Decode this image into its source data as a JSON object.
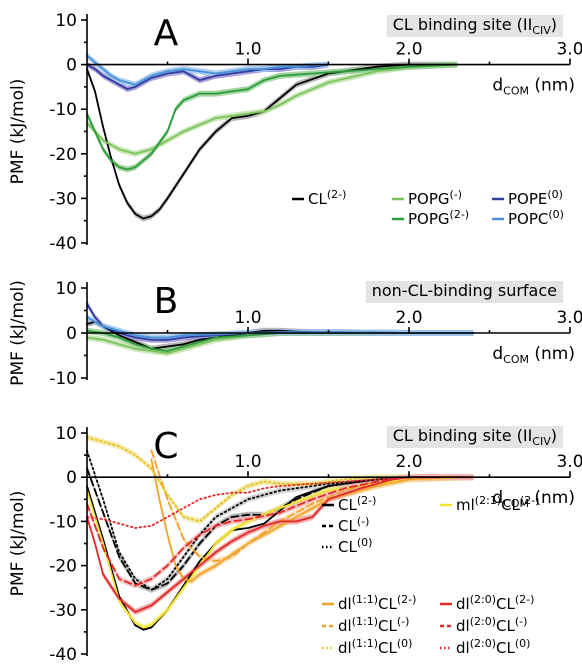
{
  "chart_data": [
    {
      "panel": "A",
      "type": "line",
      "title": "CL binding site (II",
      "title_sub": "CIV",
      "title_end": ")",
      "xlabel": "d",
      "xlabel_sub": "COM",
      "xlabel_end": " (nm)",
      "ylabel": "PMF (kJ/mol)",
      "xlim": [
        0,
        3.0
      ],
      "ylim": [
        -40,
        10
      ],
      "xticks": [
        "1.0",
        "2.0",
        "3.0"
      ],
      "yticks": [
        "10",
        "0",
        "-10",
        "-20",
        "-30",
        "-40"
      ],
      "legend_position": "lower-right",
      "series": [
        {
          "name": "CL",
          "sup": "(2-)",
          "color": "#000000",
          "dash": "solid",
          "band": true,
          "band_color": "#aaaaaa",
          "x": [
            0.0,
            0.05,
            0.1,
            0.15,
            0.2,
            0.25,
            0.3,
            0.35,
            0.4,
            0.45,
            0.5,
            0.6,
            0.7,
            0.8,
            0.9,
            1.0,
            1.1,
            1.2,
            1.3,
            1.5,
            1.8,
            2.0,
            2.3
          ],
          "y": [
            -1.0,
            -6.0,
            -14.0,
            -21.0,
            -27.0,
            -31.0,
            -33.5,
            -34.5,
            -34.0,
            -32.5,
            -30.0,
            -24.5,
            -19.0,
            -15.0,
            -12.0,
            -11.5,
            -10.5,
            -7.5,
            -4.5,
            -2.0,
            -0.5,
            0.0,
            0.0
          ]
        },
        {
          "name": "POPG",
          "sup": "(-)",
          "color": "#7dc35b",
          "dash": "solid",
          "band": true,
          "band_color": "#bfe3ad",
          "x": [
            0.0,
            0.05,
            0.1,
            0.15,
            0.2,
            0.3,
            0.4,
            0.5,
            0.6,
            0.7,
            0.8,
            0.9,
            1.0,
            1.1,
            1.2,
            1.3,
            1.5,
            1.8,
            2.0,
            2.3
          ],
          "y": [
            -13.0,
            -15.0,
            -17.0,
            -18.0,
            -19.0,
            -20.0,
            -19.0,
            -17.0,
            -15.0,
            -13.5,
            -12.0,
            -11.5,
            -11.0,
            -10.5,
            -9.0,
            -7.0,
            -4.0,
            -1.5,
            -0.5,
            0.0
          ]
        },
        {
          "name": "POPG",
          "sup": "(2-)",
          "color": "#2f9a3b",
          "dash": "solid",
          "band": true,
          "band_color": "#93cf93",
          "x": [
            0.0,
            0.05,
            0.1,
            0.15,
            0.2,
            0.25,
            0.3,
            0.4,
            0.5,
            0.55,
            0.6,
            0.7,
            0.8,
            0.9,
            1.0,
            1.1,
            1.2,
            1.4,
            1.6,
            1.8,
            2.0,
            2.3
          ],
          "y": [
            -11.0,
            -15.0,
            -19.0,
            -21.5,
            -23.0,
            -23.5,
            -23.0,
            -20.0,
            -15.0,
            -10.0,
            -8.0,
            -6.5,
            -6.5,
            -6.0,
            -5.5,
            -3.5,
            -2.5,
            -2.0,
            -1.5,
            -1.0,
            -0.5,
            0.0
          ]
        },
        {
          "name": "POPE",
          "sup": "(0)",
          "color": "#2e3f9e",
          "dash": "solid",
          "band": true,
          "band_color": "#9c8fd4",
          "x": [
            0.0,
            0.05,
            0.1,
            0.15,
            0.2,
            0.25,
            0.3,
            0.35,
            0.4,
            0.5,
            0.6,
            0.65,
            0.7,
            0.8,
            0.9,
            1.0,
            1.1,
            1.2,
            1.3,
            1.4,
            1.5
          ],
          "y": [
            0.0,
            -1.0,
            -2.5,
            -3.5,
            -4.5,
            -5.5,
            -5.0,
            -4.0,
            -3.0,
            -2.0,
            -1.5,
            -2.5,
            -3.5,
            -2.5,
            -2.0,
            -1.5,
            -1.0,
            -1.0,
            -0.5,
            -0.5,
            0.0
          ]
        },
        {
          "name": "POPC",
          "sup": "(0)",
          "color": "#4a90d9",
          "dash": "solid",
          "band": true,
          "band_color": "#9fc8ee",
          "x": [
            0.0,
            0.05,
            0.1,
            0.15,
            0.2,
            0.25,
            0.3,
            0.35,
            0.4,
            0.5,
            0.6,
            0.7,
            0.8,
            0.9,
            1.0,
            1.1,
            1.2,
            1.3,
            1.4,
            1.5
          ],
          "y": [
            2.0,
            0.5,
            -1.0,
            -2.5,
            -3.5,
            -4.0,
            -4.5,
            -3.5,
            -2.5,
            -1.5,
            -1.0,
            -1.5,
            -2.0,
            -1.5,
            -1.0,
            -1.0,
            -0.5,
            -0.5,
            -0.2,
            0.0
          ]
        }
      ]
    },
    {
      "panel": "B",
      "type": "line",
      "title": "non-CL-binding surface",
      "xlabel": "d",
      "xlabel_sub": "COM",
      "xlabel_end": " (nm)",
      "ylabel": "PMF (kJ/mol)",
      "xlim": [
        0,
        3.0
      ],
      "ylim": [
        -10,
        10
      ],
      "xticks": [
        "1.0",
        "2.0",
        "3.0"
      ],
      "yticks": [
        "10",
        "0",
        "-10"
      ],
      "series": [
        {
          "color": "#000000",
          "dash": "solid",
          "band": true,
          "band_color": "#aaaaaa",
          "x": [
            0.0,
            0.05,
            0.1,
            0.15,
            0.2,
            0.3,
            0.4,
            0.5,
            0.6,
            0.7,
            0.8,
            0.9,
            1.0,
            1.1,
            1.2,
            1.3,
            1.5,
            2.0,
            2.4
          ],
          "y": [
            2.0,
            2.5,
            1.5,
            0.5,
            -0.5,
            -2.0,
            -3.5,
            -3.0,
            -2.5,
            -1.5,
            -1.0,
            -0.5,
            0.0,
            0.5,
            0.5,
            0.3,
            0.1,
            0.0,
            0.0
          ]
        },
        {
          "color": "#7dc35b",
          "dash": "solid",
          "band": true,
          "band_color": "#bfe3ad",
          "x": [
            0.0,
            0.1,
            0.2,
            0.3,
            0.4,
            0.5,
            0.6,
            0.7,
            0.8,
            1.0,
            1.2,
            1.5,
            2.0,
            2.4
          ],
          "y": [
            -1.0,
            -1.5,
            -2.5,
            -3.5,
            -4.0,
            -4.5,
            -3.5,
            -2.5,
            -1.5,
            -0.5,
            0.0,
            0.0,
            0.0,
            0.0
          ]
        },
        {
          "color": "#2f9a3b",
          "dash": "solid",
          "band": true,
          "band_color": "#93cf93",
          "x": [
            0.0,
            0.1,
            0.2,
            0.3,
            0.4,
            0.5,
            0.6,
            0.7,
            0.8,
            1.0,
            1.2,
            1.5,
            2.0,
            2.4
          ],
          "y": [
            0.5,
            0.0,
            -1.0,
            -2.5,
            -3.5,
            -4.0,
            -3.0,
            -2.0,
            -1.0,
            -0.5,
            0.0,
            0.0,
            0.0,
            0.0
          ]
        },
        {
          "color": "#2e3f9e",
          "dash": "solid",
          "band": true,
          "band_color": "#9c8fd4",
          "x": [
            0.0,
            0.05,
            0.1,
            0.2,
            0.3,
            0.4,
            0.5,
            0.6,
            0.8,
            1.0,
            1.2,
            1.5,
            2.0,
            2.4
          ],
          "y": [
            6.5,
            3.5,
            1.5,
            0.0,
            -1.0,
            -1.5,
            -1.5,
            -1.0,
            -0.5,
            0.0,
            0.2,
            0.2,
            0.0,
            0.0
          ]
        },
        {
          "color": "#4a90d9",
          "dash": "solid",
          "band": true,
          "band_color": "#9fc8ee",
          "x": [
            0.0,
            0.05,
            0.1,
            0.2,
            0.3,
            0.4,
            0.5,
            0.6,
            0.8,
            1.0,
            1.2,
            1.5,
            2.0,
            2.4
          ],
          "y": [
            3.5,
            2.5,
            1.5,
            0.5,
            -0.5,
            -1.0,
            -1.0,
            -0.5,
            -0.3,
            0.0,
            0.2,
            0.2,
            0.0,
            0.0
          ]
        }
      ]
    },
    {
      "panel": "C",
      "type": "line",
      "title": "CL binding site (II",
      "title_sub": "CIV",
      "title_end": ")",
      "xlabel": "d",
      "xlabel_sub": "COM",
      "xlabel_end": " (nm)",
      "ylabel": "PMF (kJ/mol)",
      "xlim": [
        0,
        3.0
      ],
      "ylim": [
        -40,
        10
      ],
      "xticks": [
        "1.0",
        "2.0",
        "3.0"
      ],
      "yticks": [
        "10",
        "0",
        "-10",
        "-20",
        "-30",
        "-40"
      ],
      "legend_position": "lower-right",
      "series": [
        {
          "name": "CL",
          "sup": "(2-)",
          "color": "#000000",
          "dash": "solid",
          "band": false,
          "x": [
            0.0,
            0.1,
            0.2,
            0.3,
            0.35,
            0.4,
            0.5,
            0.6,
            0.7,
            0.8,
            0.9,
            1.0,
            1.1,
            1.2,
            1.3,
            1.5,
            1.8,
            2.0,
            2.4
          ],
          "y": [
            -2.0,
            -14.0,
            -27.0,
            -33.5,
            -34.5,
            -34.0,
            -30.0,
            -24.5,
            -19.0,
            -15.0,
            -12.0,
            -11.5,
            -10.5,
            -7.5,
            -4.5,
            -2.0,
            -0.5,
            0.0,
            0.0
          ]
        },
        {
          "name": "CL",
          "sup": "(-)",
          "color": "#000000",
          "dash": "dashed",
          "band": true,
          "band_color": "#aaaaaa",
          "x": [
            0.0,
            0.1,
            0.2,
            0.3,
            0.4,
            0.5,
            0.6,
            0.7,
            0.8,
            0.9,
            1.0,
            1.1,
            1.2,
            1.3,
            1.5,
            1.8,
            2.0,
            2.4
          ],
          "y": [
            2.0,
            -8.0,
            -18.0,
            -24.0,
            -25.5,
            -24.0,
            -20.0,
            -15.0,
            -11.0,
            -9.0,
            -8.5,
            -8.5,
            -7.0,
            -5.0,
            -2.0,
            -0.5,
            0.0,
            0.0
          ]
        },
        {
          "name": "CL",
          "sup": "(0)",
          "color": "#000000",
          "dash": "dotted",
          "band": true,
          "band_color": "#cccccc",
          "x": [
            0.0,
            0.1,
            0.2,
            0.3,
            0.4,
            0.5,
            0.6,
            0.7,
            0.8,
            1.0,
            1.2,
            1.5,
            1.8,
            2.0,
            2.4
          ],
          "y": [
            6.0,
            -5.0,
            -17.0,
            -23.0,
            -25.5,
            -23.0,
            -18.0,
            -13.0,
            -9.0,
            -5.0,
            -3.0,
            -1.5,
            -0.5,
            0.0,
            0.0
          ]
        },
        {
          "name": "ml",
          "sup": "(2:1)",
          "name_end": "CL",
          "sup_end": "(2-)",
          "color": "#f2e231",
          "dash": "solid",
          "band": true,
          "band_color": "#f7ee83",
          "x": [
            0.0,
            0.1,
            0.2,
            0.3,
            0.35,
            0.4,
            0.5,
            0.6,
            0.7,
            0.8,
            0.9,
            1.0,
            1.2,
            1.5,
            2.0,
            2.4
          ],
          "y": [
            -3.0,
            -15.0,
            -28.0,
            -33.0,
            -34.0,
            -33.5,
            -30.0,
            -25.0,
            -20.0,
            -15.0,
            -12.0,
            -10.0,
            -7.0,
            -3.0,
            -0.5,
            0.0
          ]
        },
        {
          "name": "dl",
          "sup": "(1:1)",
          "name_end": "CL",
          "sup_end": "(2-)",
          "color": "#f2a22b",
          "dash": "solid",
          "band": true,
          "band_color": "#f7d08f",
          "x": [
            0.4,
            0.45,
            0.5,
            0.55,
            0.6,
            0.65,
            0.7,
            0.8,
            0.9,
            1.0,
            1.1,
            1.2,
            1.3,
            1.5,
            1.8,
            2.0,
            2.3
          ],
          "y": [
            4.0,
            -5.0,
            -13.0,
            -20.0,
            -23.0,
            -23.5,
            -22.0,
            -20.0,
            -17.5,
            -15.0,
            -13.0,
            -11.0,
            -9.0,
            -5.0,
            -2.0,
            -0.5,
            0.0
          ]
        },
        {
          "name": "dl",
          "sup": "(1:1)",
          "name_end": "CL",
          "sup_end": "(-)",
          "color": "#f2a22b",
          "dash": "dashed",
          "band": true,
          "band_color": "#fae0b5",
          "x": [
            0.4,
            0.5,
            0.6,
            0.7,
            0.8,
            0.9,
            1.0,
            1.2,
            1.4,
            1.6,
            1.8,
            2.0,
            2.4
          ],
          "y": [
            6.0,
            -5.0,
            -14.0,
            -18.0,
            -19.0,
            -18.0,
            -15.0,
            -10.0,
            -6.0,
            -3.0,
            -1.0,
            0.0,
            0.0
          ]
        },
        {
          "name": "dl",
          "sup": "(1:1)",
          "name_end": "CL",
          "sup_end": "(0)",
          "color": "#e0c024",
          "dash": "dotted",
          "band": true,
          "band_color": "#f6e7a0",
          "x": [
            0.0,
            0.1,
            0.2,
            0.3,
            0.4,
            0.5,
            0.6,
            0.7,
            0.8,
            0.9,
            1.0,
            1.1,
            1.2,
            1.4,
            1.6,
            1.8,
            2.0,
            2.4
          ],
          "y": [
            9.0,
            8.0,
            7.0,
            5.0,
            2.0,
            -4.0,
            -9.0,
            -10.0,
            -7.0,
            -4.0,
            -2.0,
            -1.0,
            -1.5,
            -1.5,
            -0.5,
            0.0,
            0.0,
            0.0
          ]
        },
        {
          "name": "dl",
          "sup": "(2:0)",
          "name_end": "CL",
          "sup_end": "(2-)",
          "color": "#e02a2a",
          "dash": "solid",
          "band": true,
          "band_color": "#f09a9a",
          "x": [
            0.0,
            0.05,
            0.1,
            0.2,
            0.3,
            0.4,
            0.5,
            0.6,
            0.7,
            0.8,
            0.9,
            1.0,
            1.1,
            1.2,
            1.3,
            1.4,
            1.5,
            1.7,
            1.9,
            2.0,
            2.4
          ],
          "y": [
            -9.0,
            -15.0,
            -22.0,
            -27.5,
            -30.5,
            -29.0,
            -26.0,
            -23.0,
            -20.0,
            -17.0,
            -14.5,
            -12.5,
            -11.0,
            -10.0,
            -10.0,
            -9.0,
            -5.0,
            -2.5,
            -0.5,
            0.0,
            0.0
          ]
        },
        {
          "name": "dl",
          "sup": "(2:0)",
          "name_end": "CL",
          "sup_end": "(-)",
          "color": "#e02a2a",
          "dash": "dashed",
          "band": true,
          "band_color": "#f5b8b8",
          "x": [
            0.0,
            0.1,
            0.2,
            0.3,
            0.4,
            0.5,
            0.6,
            0.7,
            0.8,
            0.9,
            1.0,
            1.2,
            1.4,
            1.6,
            1.8,
            2.0,
            2.4
          ],
          "y": [
            -6.0,
            -16.0,
            -23.0,
            -24.5,
            -23.0,
            -20.0,
            -16.0,
            -13.0,
            -11.0,
            -10.0,
            -9.5,
            -8.0,
            -5.0,
            -2.5,
            -1.0,
            0.0,
            0.0
          ]
        },
        {
          "name": "dl",
          "sup": "(2:0)",
          "name_end": "CL",
          "sup_end": "(0)",
          "color": "#e02a2a",
          "dash": "dotted",
          "band": false,
          "x": [
            0.0,
            0.1,
            0.2,
            0.3,
            0.4,
            0.5,
            0.6,
            0.7,
            0.8,
            0.9,
            1.0,
            1.1,
            1.2,
            1.4,
            1.6,
            1.8,
            2.0,
            2.4
          ],
          "y": [
            -9.0,
            -9.5,
            -10.5,
            -11.5,
            -11.0,
            -9.0,
            -7.0,
            -5.0,
            -4.0,
            -3.5,
            -3.5,
            -2.5,
            -2.0,
            -1.5,
            -1.0,
            -0.5,
            0.0,
            0.0
          ]
        }
      ]
    }
  ]
}
